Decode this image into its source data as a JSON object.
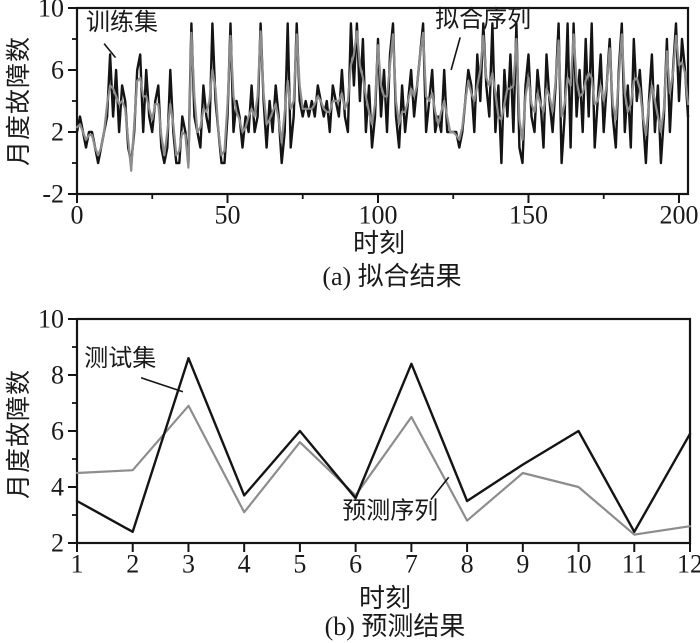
{
  "figure": {
    "background": "#ffffff",
    "text_color": "#1a1a1a",
    "frame_color": "#141414",
    "series_black": "#141414",
    "series_gray": "#8d8d8d"
  },
  "chart_data": [
    {
      "id": "fit",
      "type": "line",
      "caption": "(a) 拟合结果",
      "xlabel": "时刻",
      "ylabel": "月度故障数",
      "xlim": [
        0,
        203
      ],
      "ylim": [
        -2,
        10
      ],
      "grid": false,
      "xticks": {
        "major": [
          0,
          50,
          100,
          150,
          200
        ],
        "labels": [
          "0",
          "50",
          "100",
          "150",
          "200"
        ],
        "minor": [
          25,
          75,
          125,
          175
        ]
      },
      "yticks": {
        "major": [
          -2,
          2,
          6,
          10
        ],
        "labels": [
          "-2",
          "2",
          "6",
          "10"
        ],
        "minor": [
          0,
          4,
          8
        ]
      },
      "series": [
        {
          "key": "train",
          "name": "训练集",
          "color": "#141414",
          "width": 2.4,
          "values": [
            2,
            3,
            2,
            1,
            2,
            2,
            1,
            0,
            1,
            2,
            3,
            7,
            3,
            6,
            2,
            5,
            4,
            1,
            0,
            2,
            6,
            7,
            2,
            6,
            3,
            2,
            4,
            5,
            1,
            0,
            1,
            6,
            2,
            0,
            0,
            3,
            2,
            0,
            9,
            3,
            2,
            1,
            5,
            3,
            2,
            9,
            4,
            2,
            0,
            0,
            3,
            9,
            2,
            4,
            3,
            1,
            3,
            2,
            5,
            2,
            3,
            9,
            4,
            1,
            4,
            2,
            5,
            3,
            0,
            2,
            9,
            1,
            3,
            9,
            4,
            3,
            4,
            3,
            4,
            3,
            5,
            4,
            3,
            4,
            2,
            5,
            4,
            3,
            6,
            3,
            2,
            9,
            5,
            9,
            4,
            8,
            2,
            5,
            1,
            3,
            8,
            3,
            6,
            2,
            7,
            9,
            3,
            1,
            5,
            2,
            4,
            6,
            3,
            5,
            7,
            9,
            2,
            4,
            6,
            2,
            3,
            2,
            6,
            2,
            2,
            2,
            2,
            1,
            2,
            4,
            6,
            5,
            2,
            7,
            4,
            9,
            5,
            3,
            9,
            2,
            5,
            0,
            6,
            3,
            7,
            2,
            9,
            1,
            0,
            5,
            7,
            3,
            2,
            6,
            4,
            1,
            7,
            4,
            2,
            5,
            9,
            0,
            3,
            9,
            1,
            9,
            3,
            6,
            2,
            8,
            3,
            9,
            1,
            4,
            7,
            2,
            5,
            8,
            3,
            1,
            6,
            9,
            2,
            5,
            1,
            8,
            4,
            6,
            3,
            0,
            4,
            7,
            2,
            5,
            0,
            3,
            8,
            2,
            6,
            9,
            4,
            8,
            6,
            3
          ]
        },
        {
          "key": "fitted",
          "name": "拟合序列",
          "color": "#8d8d8d",
          "width": 2.2,
          "values": [
            2.3,
            2.5,
            2.0,
            1.5,
            1.8,
            1.8,
            1.0,
            0.5,
            1.0,
            2.0,
            3.8,
            5.0,
            4.8,
            4.3,
            3.8,
            4.0,
            3.5,
            1.5,
            -0.5,
            2.5,
            5.3,
            5.5,
            4.3,
            4.3,
            3.5,
            2.8,
            3.8,
            3.8,
            1.8,
            0.5,
            2.0,
            3.8,
            2.5,
            0.5,
            0.8,
            2.0,
            1.8,
            -0.3,
            8.4,
            4.3,
            2.0,
            2.3,
            3.5,
            3.3,
            4.0,
            6.0,
            4.8,
            2.0,
            0.5,
            0.8,
            3.8,
            8.2,
            4.3,
            3.3,
            2.8,
            2.0,
            2.3,
            3.0,
            3.5,
            3.0,
            4.3,
            8.5,
            4.5,
            2.5,
            2.8,
            3.3,
            3.8,
            2.8,
            1.3,
            3.3,
            5.3,
            3.5,
            4.0,
            8.3,
            5.0,
            3.5,
            3.5,
            3.5,
            3.5,
            3.8,
            4.3,
            4.0,
            3.5,
            3.3,
            3.3,
            4.0,
            4.0,
            4.0,
            4.5,
            3.5,
            4.0,
            6.3,
            7.0,
            8.5,
            6.3,
            5.5,
            4.3,
            3.3,
            2.5,
            3.8,
            7.6,
            5.0,
            4.3,
            4.3,
            6.3,
            8.3,
            4.0,
            2.5,
            3.3,
            3.3,
            4.0,
            4.8,
            4.3,
            5.0,
            7.0,
            8.4,
            4.3,
            4.0,
            4.5,
            3.3,
            2.5,
            3.3,
            4.0,
            3.0,
            2.0,
            2.0,
            1.8,
            1.5,
            2.3,
            4.0,
            5.3,
            4.5,
            4.0,
            5.0,
            6.0,
            8.2,
            5.5,
            5.0,
            5.8,
            4.5,
            3.0,
            2.8,
            3.8,
            4.8,
            4.8,
            5.0,
            8.0,
            2.8,
            1.5,
            4.3,
            5.5,
            3.8,
            3.3,
            4.5,
            3.8,
            3.3,
            4.8,
            4.3,
            3.3,
            5.3,
            7.9,
            3.0,
            3.8,
            5.5,
            5.0,
            8.3,
            5.3,
            4.3,
            4.5,
            5.3,
            5.8,
            5.5,
            3.8,
            4.0,
            5.0,
            4.0,
            5.0,
            7.4,
            3.8,
            2.8,
            5.5,
            8.3,
            4.5,
            3.3,
            3.8,
            5.3,
            5.5,
            4.8,
            3.0,
            1.8,
            3.8,
            5.0,
            4.0,
            3.0,
            2.0,
            3.5,
            7.2,
            4.5,
            5.8,
            8.2,
            6.3,
            6.5,
            5.8,
            3.8
          ]
        }
      ],
      "annotations": [
        {
          "text": "训练集",
          "x": 3.0,
          "y": 9.6,
          "leader": [
            9.0,
            7.7,
            12.8,
            6.8
          ]
        },
        {
          "text": "拟合序列",
          "x": 119.0,
          "y": 9.8,
          "leader": [
            127.3,
            8.1,
            124.3,
            6.0
          ]
        }
      ]
    },
    {
      "id": "pred",
      "type": "line",
      "caption": "(b) 预测结果",
      "xlabel": "时刻",
      "ylabel": "月度故障数",
      "xlim": [
        1,
        12
      ],
      "ylim": [
        2,
        10
      ],
      "grid": false,
      "x": [
        1,
        2,
        3,
        4,
        5,
        6,
        7,
        8,
        9,
        10,
        11,
        12
      ],
      "xticks": {
        "major": [
          1,
          2,
          3,
          4,
          5,
          6,
          7,
          8,
          9,
          10,
          11,
          12
        ],
        "labels": [
          "1",
          "2",
          "3",
          "4",
          "5",
          "6",
          "7",
          "8",
          "9",
          "10",
          "11",
          "12"
        ],
        "minor": []
      },
      "yticks": {
        "major": [
          2,
          4,
          6,
          8,
          10
        ],
        "labels": [
          "2",
          "4",
          "6",
          "8",
          "10"
        ],
        "minor": [
          3,
          5,
          7,
          9
        ]
      },
      "series": [
        {
          "key": "predicted",
          "name": "预测序列",
          "color": "#8d8d8d",
          "width": 2.2,
          "values": [
            4.5,
            4.6,
            6.9,
            3.1,
            5.6,
            3.7,
            6.5,
            2.8,
            4.5,
            4.0,
            2.3,
            2.6
          ]
        },
        {
          "key": "test",
          "name": "测试集",
          "color": "#141414",
          "width": 2.4,
          "values": [
            3.5,
            2.4,
            8.6,
            3.7,
            6.0,
            3.6,
            8.4,
            3.5,
            4.8,
            6.0,
            2.4,
            5.9
          ]
        }
      ],
      "annotations": [
        {
          "text": "测试集",
          "x": 1.13,
          "y": 8.9,
          "leader": [
            2.15,
            7.9,
            2.9,
            7.4
          ]
        },
        {
          "text": "预测序列",
          "x": 5.76,
          "y": 3.45,
          "leader": [
            7.35,
            3.55,
            7.67,
            4.35
          ]
        }
      ]
    }
  ]
}
